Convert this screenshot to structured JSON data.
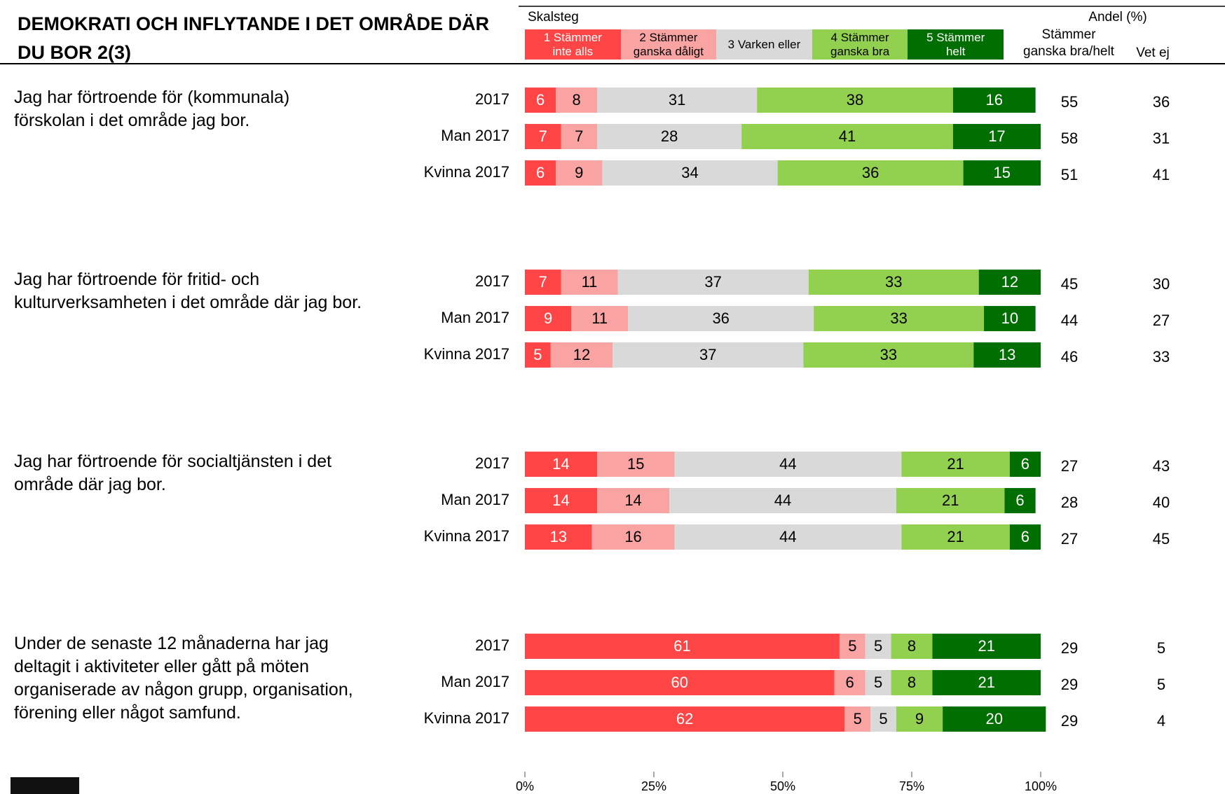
{
  "chart_data": {
    "type": "bar",
    "title": "DEMOKRATI OCH INFLYTANDE I DET OMRÅDE DÄR DU BOR 2(3)",
    "legend_title": "Skalsteg",
    "share_header": "Andel (%)",
    "agree_header": "Stämmer\nganska bra/helt",
    "dontknow_header": "Vet ej",
    "series": [
      {
        "name": "1 Stämmer\ninte alls",
        "color": "#ff4545"
      },
      {
        "name": "2 Stämmer\nganska dåligt",
        "color": "#f9a3a3"
      },
      {
        "name": "3 Varken eller",
        "color": "#d9d9d9"
      },
      {
        "name": "4 Stämmer\nganska bra",
        "color": "#92d050"
      },
      {
        "name": "5 Stämmer\nhelt",
        "color": "#006e00"
      }
    ],
    "groups": [
      {
        "question": "Jag har förtroende för (kommunala) förskolan i det område jag bor.",
        "categories": [
          "2017",
          "Man 2017",
          "Kvinna 2017"
        ],
        "values": [
          [
            6,
            8,
            31,
            38,
            16
          ],
          [
            7,
            7,
            28,
            41,
            17
          ],
          [
            6,
            9,
            34,
            36,
            15
          ]
        ],
        "agree": [
          55,
          58,
          51
        ],
        "dontknow": [
          36,
          31,
          41
        ]
      },
      {
        "question": "Jag har förtroende för fritid- och kulturverksamheten i det område där jag bor.",
        "categories": [
          "2017",
          "Man 2017",
          "Kvinna 2017"
        ],
        "values": [
          [
            7,
            11,
            37,
            33,
            12
          ],
          [
            9,
            11,
            36,
            33,
            10
          ],
          [
            5,
            12,
            37,
            33,
            13
          ]
        ],
        "agree": [
          45,
          44,
          46
        ],
        "dontknow": [
          30,
          27,
          33
        ]
      },
      {
        "question": "Jag har förtroende för socialtjänsten i det område där jag bor.",
        "categories": [
          "2017",
          "Man 2017",
          "Kvinna 2017"
        ],
        "values": [
          [
            14,
            15,
            44,
            21,
            6
          ],
          [
            14,
            14,
            44,
            21,
            6
          ],
          [
            13,
            16,
            44,
            21,
            6
          ]
        ],
        "agree": [
          27,
          28,
          27
        ],
        "dontknow": [
          43,
          40,
          45
        ]
      },
      {
        "question": "Under de senaste 12 månaderna har jag deltagit i aktiviteter eller gått på möten organiserade av någon grupp, organisation, förening eller något samfund.",
        "categories": [
          "2017",
          "Man 2017",
          "Kvinna 2017"
        ],
        "values": [
          [
            61,
            5,
            5,
            8,
            21
          ],
          [
            60,
            6,
            5,
            8,
            21
          ],
          [
            62,
            5,
            5,
            9,
            20
          ]
        ],
        "agree": [
          29,
          29,
          29
        ],
        "dontknow": [
          5,
          5,
          4
        ]
      }
    ],
    "xlim": [
      0,
      100
    ],
    "xticks": [
      {
        "value": 0,
        "label": "0%"
      },
      {
        "value": 25,
        "label": "25%"
      },
      {
        "value": 50,
        "label": "50%"
      },
      {
        "value": 75,
        "label": "75%"
      },
      {
        "value": 100,
        "label": "100%"
      }
    ]
  }
}
